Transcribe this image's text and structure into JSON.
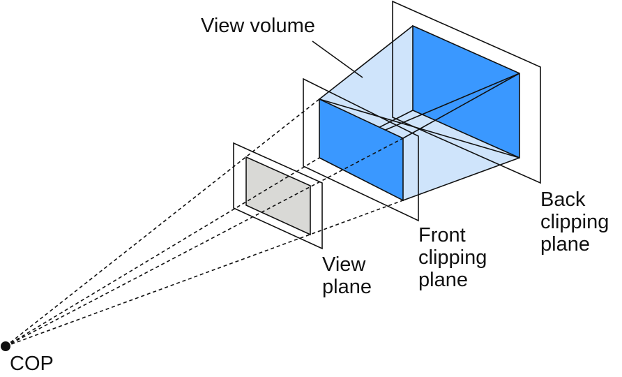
{
  "labels": {
    "view_volume": "View volume",
    "back_plane": [
      "Back",
      "clipping",
      "plane"
    ],
    "front_plane": [
      "Front",
      "clipping",
      "plane"
    ],
    "view_plane": [
      "View",
      "plane"
    ],
    "cop": "COP"
  },
  "colors": {
    "volume_light": "#cfe4fb",
    "volume_dark": "#3a98ff",
    "view_window": "#d9d9d6",
    "stroke": "#111111",
    "background": "#ffffff"
  }
}
